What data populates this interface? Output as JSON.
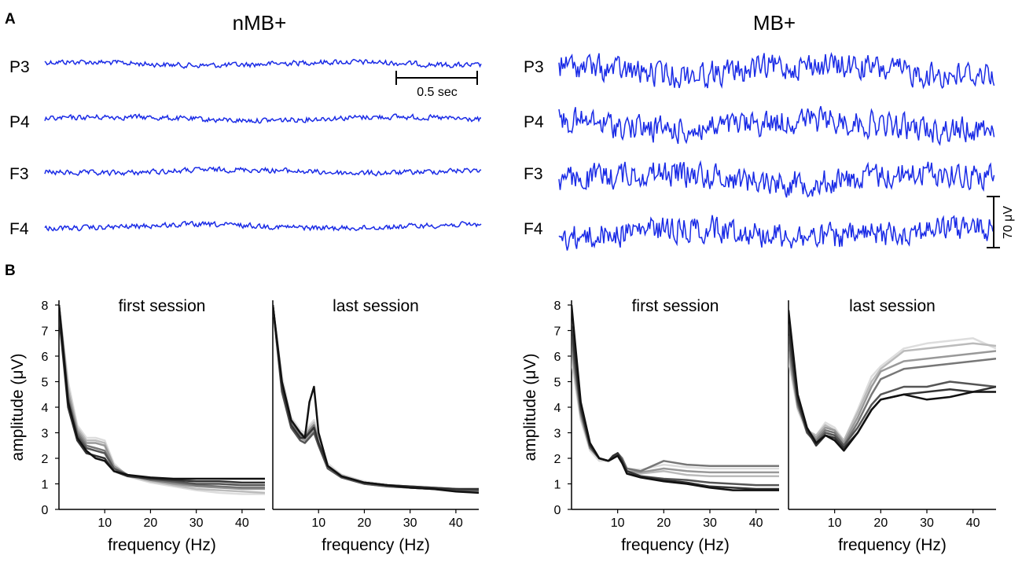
{
  "panels": {
    "a": "A",
    "b": "B"
  },
  "groups": {
    "nmb": "nMB+",
    "mb": "MB+"
  },
  "channels": [
    "P3",
    "P4",
    "F3",
    "F4"
  ],
  "scale_bars": {
    "time": "0.5 sec",
    "amplitude": "70 μV"
  },
  "colors": {
    "eeg": "#1a2be6",
    "axis": "#000000"
  },
  "chart_data": [
    {
      "id": "nmb-first",
      "type": "line",
      "title": "first session",
      "xlabel": "frequency (Hz)",
      "ylabel": "amplitude (μV)",
      "xlim": [
        0,
        45
      ],
      "ylim": [
        0,
        8
      ],
      "xticks": [
        10,
        20,
        30,
        40
      ],
      "yticks": [
        0,
        1,
        2,
        3,
        4,
        5,
        6,
        7,
        8
      ],
      "x": [
        0,
        2,
        4,
        6,
        8,
        10,
        12,
        15,
        20,
        25,
        30,
        35,
        40,
        45
      ],
      "series": [
        {
          "color": "#111111",
          "values": [
            8.0,
            4.2,
            2.8,
            2.3,
            2.0,
            1.9,
            1.5,
            1.35,
            1.25,
            1.2,
            1.2,
            1.2,
            1.2,
            1.2
          ]
        },
        {
          "color": "#333333",
          "values": [
            7.6,
            4.0,
            2.7,
            2.2,
            2.1,
            2.0,
            1.5,
            1.3,
            1.2,
            1.15,
            1.1,
            1.1,
            1.05,
            1.05
          ]
        },
        {
          "color": "#555555",
          "values": [
            8.0,
            4.3,
            2.9,
            2.4,
            2.3,
            2.2,
            1.6,
            1.35,
            1.2,
            1.1,
            1.0,
            1.0,
            0.95,
            0.95
          ]
        },
        {
          "color": "#777777",
          "values": [
            8.0,
            4.4,
            3.0,
            2.5,
            2.4,
            2.3,
            1.6,
            1.35,
            1.15,
            1.05,
            0.95,
            0.9,
            0.85,
            0.85
          ]
        },
        {
          "color": "#999999",
          "values": [
            8.0,
            4.6,
            3.1,
            2.6,
            2.6,
            2.5,
            1.7,
            1.35,
            1.15,
            1.0,
            0.9,
            0.85,
            0.8,
            0.8
          ]
        },
        {
          "color": "#bbbbbb",
          "values": [
            8.0,
            4.8,
            3.2,
            2.7,
            2.7,
            2.6,
            1.7,
            1.3,
            1.1,
            0.95,
            0.8,
            0.75,
            0.7,
            0.65
          ]
        },
        {
          "color": "#dddddd",
          "values": [
            8.0,
            5.0,
            3.3,
            2.8,
            2.8,
            2.7,
            1.8,
            1.3,
            1.05,
            0.9,
            0.75,
            0.65,
            0.6,
            0.6
          ]
        }
      ]
    },
    {
      "id": "nmb-last",
      "type": "line",
      "title": "last session",
      "xlabel": "frequency (Hz)",
      "ylabel": "",
      "xlim": [
        0,
        45
      ],
      "ylim": [
        0,
        8
      ],
      "xticks": [
        10,
        20,
        30,
        40
      ],
      "yticks": [
        0,
        1,
        2,
        3,
        4,
        5,
        6,
        7,
        8
      ],
      "x": [
        0,
        2,
        4,
        6,
        7,
        8,
        9,
        10,
        12,
        15,
        20,
        25,
        30,
        35,
        40,
        45
      ],
      "series": [
        {
          "color": "#111111",
          "values": [
            8.0,
            5.0,
            3.5,
            3.0,
            2.8,
            4.2,
            4.8,
            3.0,
            1.7,
            1.3,
            1.05,
            0.95,
            0.85,
            0.8,
            0.7,
            0.65
          ]
        },
        {
          "color": "#333333",
          "values": [
            8.0,
            4.8,
            3.3,
            2.8,
            2.8,
            3.0,
            3.2,
            2.6,
            1.7,
            1.3,
            1.05,
            0.95,
            0.9,
            0.85,
            0.8,
            0.8
          ]
        },
        {
          "color": "#555555",
          "values": [
            8.0,
            4.6,
            3.2,
            2.7,
            2.6,
            2.8,
            3.0,
            2.5,
            1.6,
            1.25,
            1.0,
            0.9,
            0.85,
            0.8,
            0.75,
            0.75
          ]
        },
        {
          "color": "#777777",
          "values": [
            8.0,
            4.9,
            3.4,
            2.9,
            2.8,
            3.1,
            3.3,
            2.6,
            1.7,
            1.3,
            1.05,
            0.95,
            0.9,
            0.85,
            0.8,
            0.75
          ]
        },
        {
          "color": "#999999",
          "values": [
            8.0,
            4.7,
            3.3,
            2.8,
            2.7,
            2.9,
            3.1,
            2.6,
            1.6,
            1.3,
            1.0,
            0.9,
            0.85,
            0.8,
            0.75,
            0.7
          ]
        },
        {
          "color": "#bbbbbb",
          "values": [
            8.0,
            5.0,
            3.5,
            3.0,
            2.9,
            3.2,
            3.4,
            2.7,
            1.7,
            1.35,
            1.05,
            0.95,
            0.85,
            0.8,
            0.75,
            0.7
          ]
        },
        {
          "color": "#dddddd",
          "values": [
            8.0,
            5.2,
            3.6,
            3.1,
            3.0,
            3.3,
            3.5,
            2.8,
            1.8,
            1.35,
            1.1,
            0.95,
            0.85,
            0.8,
            0.7,
            0.65
          ]
        }
      ]
    },
    {
      "id": "mb-first",
      "type": "line",
      "title": "first session",
      "xlabel": "frequency (Hz)",
      "ylabel": "amplitude (μV)",
      "xlim": [
        0,
        45
      ],
      "ylim": [
        0,
        8
      ],
      "xticks": [
        10,
        20,
        30,
        40
      ],
      "yticks": [
        0,
        1,
        2,
        3,
        4,
        5,
        6,
        7,
        8
      ],
      "x": [
        0,
        2,
        4,
        6,
        8,
        9,
        10,
        11,
        12,
        15,
        20,
        25,
        30,
        35,
        40,
        45
      ],
      "series": [
        {
          "color": "#111111",
          "values": [
            8.0,
            4.2,
            2.6,
            2.0,
            1.9,
            2.0,
            2.1,
            1.8,
            1.4,
            1.25,
            1.1,
            1.0,
            0.85,
            0.75,
            0.75,
            0.75
          ]
        },
        {
          "color": "#333333",
          "values": [
            7.2,
            4.0,
            2.5,
            2.0,
            1.9,
            2.1,
            2.2,
            1.9,
            1.5,
            1.3,
            1.15,
            1.05,
            0.9,
            0.85,
            0.8,
            0.8
          ]
        },
        {
          "color": "#555555",
          "values": [
            6.8,
            3.9,
            2.5,
            2.0,
            1.9,
            2.0,
            2.2,
            1.9,
            1.5,
            1.3,
            1.2,
            1.15,
            1.05,
            1.0,
            0.95,
            0.95
          ]
        },
        {
          "color": "#777777",
          "values": [
            6.5,
            3.8,
            2.4,
            2.0,
            1.9,
            2.1,
            2.2,
            2.0,
            1.6,
            1.5,
            1.9,
            1.75,
            1.7,
            1.7,
            1.7,
            1.7
          ]
        },
        {
          "color": "#999999",
          "values": [
            6.2,
            3.7,
            2.4,
            2.0,
            1.9,
            2.0,
            2.1,
            1.9,
            1.5,
            1.45,
            1.6,
            1.5,
            1.45,
            1.45,
            1.45,
            1.45
          ]
        },
        {
          "color": "#bbbbbb",
          "values": [
            6.0,
            3.6,
            2.4,
            2.0,
            1.9,
            2.0,
            2.2,
            1.9,
            1.5,
            1.4,
            1.5,
            1.35,
            1.3,
            1.3,
            1.3,
            1.3
          ]
        },
        {
          "color": "#dddddd",
          "values": [
            5.8,
            3.5,
            2.3,
            1.9,
            1.9,
            2.0,
            2.1,
            1.9,
            1.6,
            1.55,
            1.75,
            1.65,
            1.6,
            1.6,
            1.6,
            1.6
          ]
        }
      ]
    },
    {
      "id": "mb-last",
      "type": "line",
      "title": "last session",
      "xlabel": "frequency (Hz)",
      "ylabel": "",
      "xlim": [
        0,
        45
      ],
      "ylim": [
        0,
        8
      ],
      "xticks": [
        10,
        20,
        30,
        40
      ],
      "yticks": [
        0,
        1,
        2,
        3,
        4,
        5,
        6,
        7,
        8
      ],
      "x": [
        0,
        2,
        4,
        6,
        8,
        10,
        12,
        15,
        18,
        20,
        25,
        30,
        35,
        40,
        45
      ],
      "series": [
        {
          "color": "#111111",
          "values": [
            7.8,
            4.5,
            3.2,
            2.6,
            2.9,
            2.7,
            2.3,
            3.0,
            3.9,
            4.3,
            4.5,
            4.3,
            4.4,
            4.6,
            4.6
          ]
        },
        {
          "color": "#333333",
          "values": [
            7.2,
            4.3,
            3.1,
            2.5,
            2.9,
            2.8,
            2.4,
            3.0,
            3.9,
            4.3,
            4.5,
            4.6,
            4.7,
            4.6,
            4.8
          ]
        },
        {
          "color": "#555555",
          "values": [
            6.8,
            4.2,
            3.0,
            2.6,
            3.0,
            2.9,
            2.5,
            3.2,
            4.1,
            4.5,
            4.8,
            4.8,
            5.0,
            4.9,
            4.8
          ]
        },
        {
          "color": "#777777",
          "values": [
            6.5,
            4.1,
            3.1,
            2.7,
            3.1,
            3.0,
            2.5,
            3.4,
            4.5,
            5.1,
            5.5,
            5.6,
            5.7,
            5.8,
            5.9
          ]
        },
        {
          "color": "#999999",
          "values": [
            6.2,
            4.0,
            3.1,
            2.8,
            3.2,
            3.1,
            2.6,
            3.6,
            4.8,
            5.4,
            5.8,
            5.9,
            6.0,
            6.1,
            6.2
          ]
        },
        {
          "color": "#bbbbbb",
          "values": [
            6.0,
            4.0,
            3.1,
            2.9,
            3.3,
            3.1,
            2.7,
            3.8,
            5.0,
            5.5,
            6.2,
            6.3,
            6.4,
            6.5,
            6.4
          ]
        },
        {
          "color": "#dddddd",
          "values": [
            5.8,
            3.9,
            3.0,
            2.9,
            3.4,
            3.2,
            2.7,
            3.9,
            5.2,
            5.6,
            6.3,
            6.5,
            6.6,
            6.7,
            6.3
          ]
        }
      ]
    }
  ]
}
